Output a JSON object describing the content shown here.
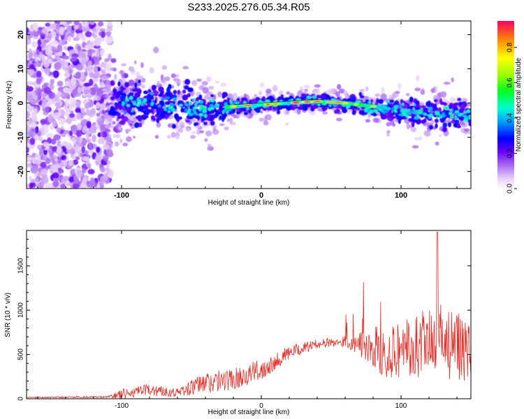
{
  "title": "S233.2025.276.05.34.R05",
  "colors": {
    "snr_line": "#e8302a",
    "axis": "#000000"
  },
  "chart_data": [
    {
      "type": "heatmap",
      "name": "spectrogram",
      "xlabel": "Height of straight line (km)",
      "ylabel": "Frequency (Hz)",
      "xlim": [
        -168,
        150
      ],
      "ylim": [
        -25,
        24
      ],
      "xticks": [
        -100,
        0,
        100
      ],
      "yticks": [
        -20,
        -10,
        0,
        10,
        20
      ],
      "colorbar": {
        "label": "Normalized spectral amplitude",
        "range": [
          0,
          0.95
        ],
        "ticks": [
          "0.0",
          "0.2",
          "0.4",
          "0.6",
          "0.8"
        ]
      },
      "ridge": {
        "description_points_height_km": [
          -110,
          -100,
          -80,
          -60,
          -40,
          -20,
          0,
          20,
          40,
          60,
          80,
          100,
          120,
          150
        ],
        "center_freq_hz": [
          0,
          0,
          0,
          -1,
          -2,
          -1,
          -0.5,
          0,
          0.5,
          0,
          -1,
          -2,
          -3,
          -3
        ]
      }
    },
    {
      "type": "line",
      "name": "snr",
      "xlabel": "Height of straight line (km)",
      "ylabel": "SNR (10 * v/v)",
      "xlim": [
        -168,
        150
      ],
      "ylim": [
        0,
        1900
      ],
      "xticks": [
        -100,
        0,
        100
      ],
      "yticks": [
        0,
        500,
        1000,
        1500
      ],
      "envelope": {
        "x": [
          -168,
          -110,
          -100,
          -80,
          -60,
          -40,
          -20,
          0,
          20,
          40,
          60,
          70,
          80,
          90,
          100,
          110,
          120,
          130,
          140,
          150
        ],
        "y_mean": [
          15,
          20,
          50,
          100,
          70,
          180,
          220,
          330,
          520,
          620,
          650,
          600,
          560,
          540,
          560,
          580,
          600,
          600,
          580,
          600
        ],
        "y_noise": [
          8,
          10,
          60,
          70,
          50,
          130,
          120,
          120,
          80,
          50,
          60,
          150,
          250,
          300,
          350,
          380,
          420,
          430,
          400,
          420
        ]
      }
    }
  ],
  "axes": {
    "top_xlabel": "Height of straight line (km)",
    "top_ylabel": "Frequency (Hz)",
    "bottom_xlabel": "Height of straight line (km)",
    "bottom_ylabel": "SNR (10 * v/v)",
    "colorbar_label": "Normalized spectral amplitude"
  }
}
